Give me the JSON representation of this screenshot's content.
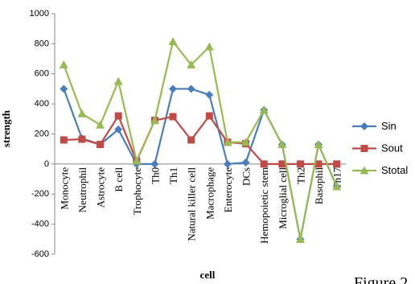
{
  "chart_data": {
    "type": "line",
    "x_label": "cell",
    "y_label": "strength",
    "annotation": "Figure 2",
    "categories": [
      "Monocyte",
      "Neutrophil",
      "Astrocyte",
      "B cell",
      "Trophocyte",
      "Th0",
      "Th1",
      "Natural killer cell",
      "Macrophage",
      "Enterocyte",
      "DCs",
      "Hemopoietic stem",
      "Microglial cell",
      "Th2",
      "Basophil",
      "Th17"
    ],
    "series": [
      {
        "name": "Sin",
        "color": "#4a7ebb",
        "marker": "diamond",
        "values": [
          500,
          170,
          130,
          230,
          0,
          0,
          500,
          500,
          460,
          0,
          10,
          360,
          130,
          -500,
          130,
          -150
        ]
      },
      {
        "name": "Sout",
        "color": "#be4b48",
        "marker": "square",
        "values": [
          160,
          165,
          130,
          320,
          20,
          290,
          315,
          160,
          320,
          145,
          135,
          0,
          0,
          0,
          0,
          0
        ]
      },
      {
        "name": "Stotal",
        "color": "#98b954",
        "marker": "triangle",
        "values": [
          660,
          335,
          260,
          550,
          20,
          290,
          815,
          660,
          780,
          145,
          145,
          360,
          130,
          -500,
          130,
          -150
        ]
      }
    ],
    "ylim": [
      -600,
      1000
    ],
    "yticks": [
      -600,
      -400,
      -200,
      0,
      200,
      400,
      600,
      800,
      1000
    ],
    "grid": false,
    "legend": "right"
  }
}
